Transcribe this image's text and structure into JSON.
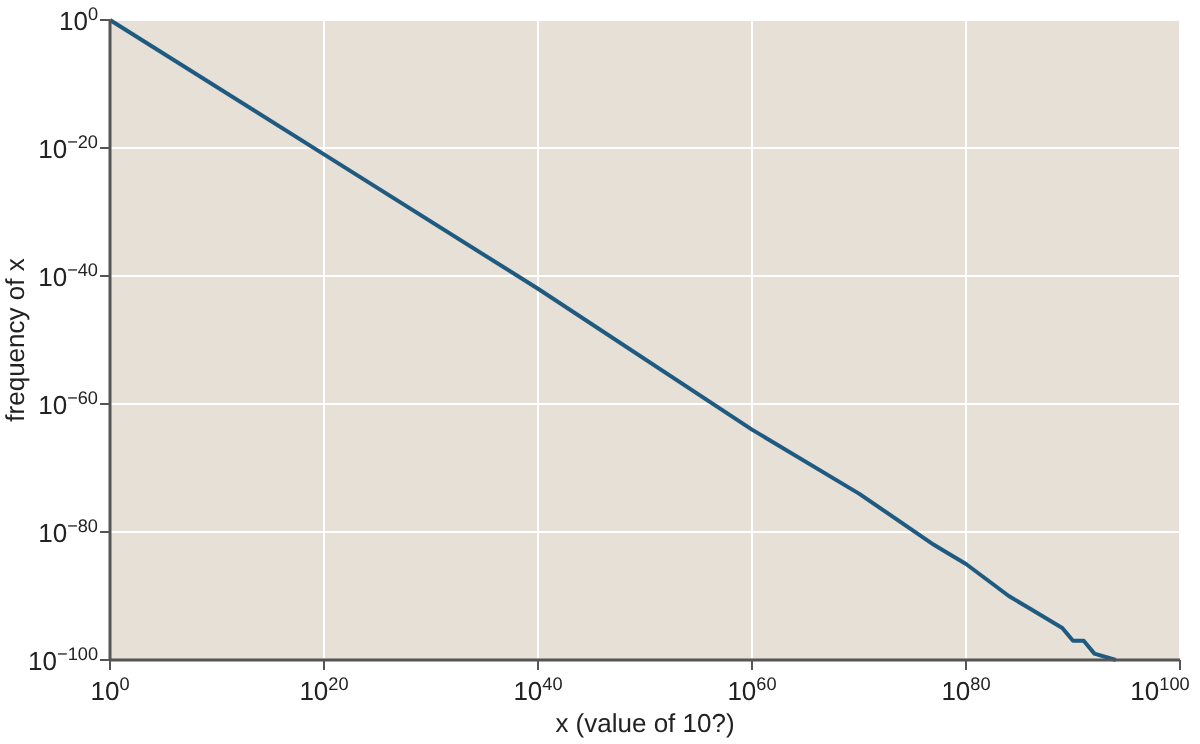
{
  "chart_data": {
    "type": "line",
    "xlabel": "x (value of 10?)",
    "ylabel": "frequency of x",
    "log": "xy",
    "grid": true,
    "xlim": [
      1,
      1e+100
    ],
    "ylim": [
      1e-100,
      1
    ],
    "xticks": [
      {
        "value": 1,
        "label": "10$^{0}$"
      },
      {
        "value": 1e+20,
        "label": "10$^{20}$"
      },
      {
        "value": 1e+40,
        "label": "10$^{40}$"
      },
      {
        "value": 1e+60,
        "label": "10$^{60}$"
      },
      {
        "value": 1e+80,
        "label": "10$^{80}$"
      },
      {
        "value": 1e+100,
        "label": "10$^{100}$"
      }
    ],
    "yticks": [
      {
        "value": 1e-100,
        "label": "10$^{−100}$"
      },
      {
        "value": 1e-80,
        "label": "10$^{−80}$"
      },
      {
        "value": 1e-60,
        "label": "10$^{−60}$"
      },
      {
        "value": 1e-40,
        "label": "10$^{−40}$"
      },
      {
        "value": 1e-20,
        "label": "10$^{−20}$"
      },
      {
        "value": 1,
        "label": "10$^{0}$"
      }
    ],
    "series": [
      {
        "color": "#1f5a80",
        "x": [
          1,
          1e+20,
          1e+40,
          1e+60,
          1e+70,
          1e+77,
          1e+78,
          1e+80,
          1e+84,
          1e+86,
          1e+89,
          1e+90,
          1e+91,
          1e+92,
          1e+94
        ],
        "values": [
          1,
          1e-21,
          1e-42,
          1e-64,
          1e-74,
          1e-82,
          1e-83,
          1e-85,
          1e-90,
          1e-92,
          1e-95,
          1e-97,
          1e-97,
          1e-99,
          1e-100
        ]
      }
    ]
  }
}
